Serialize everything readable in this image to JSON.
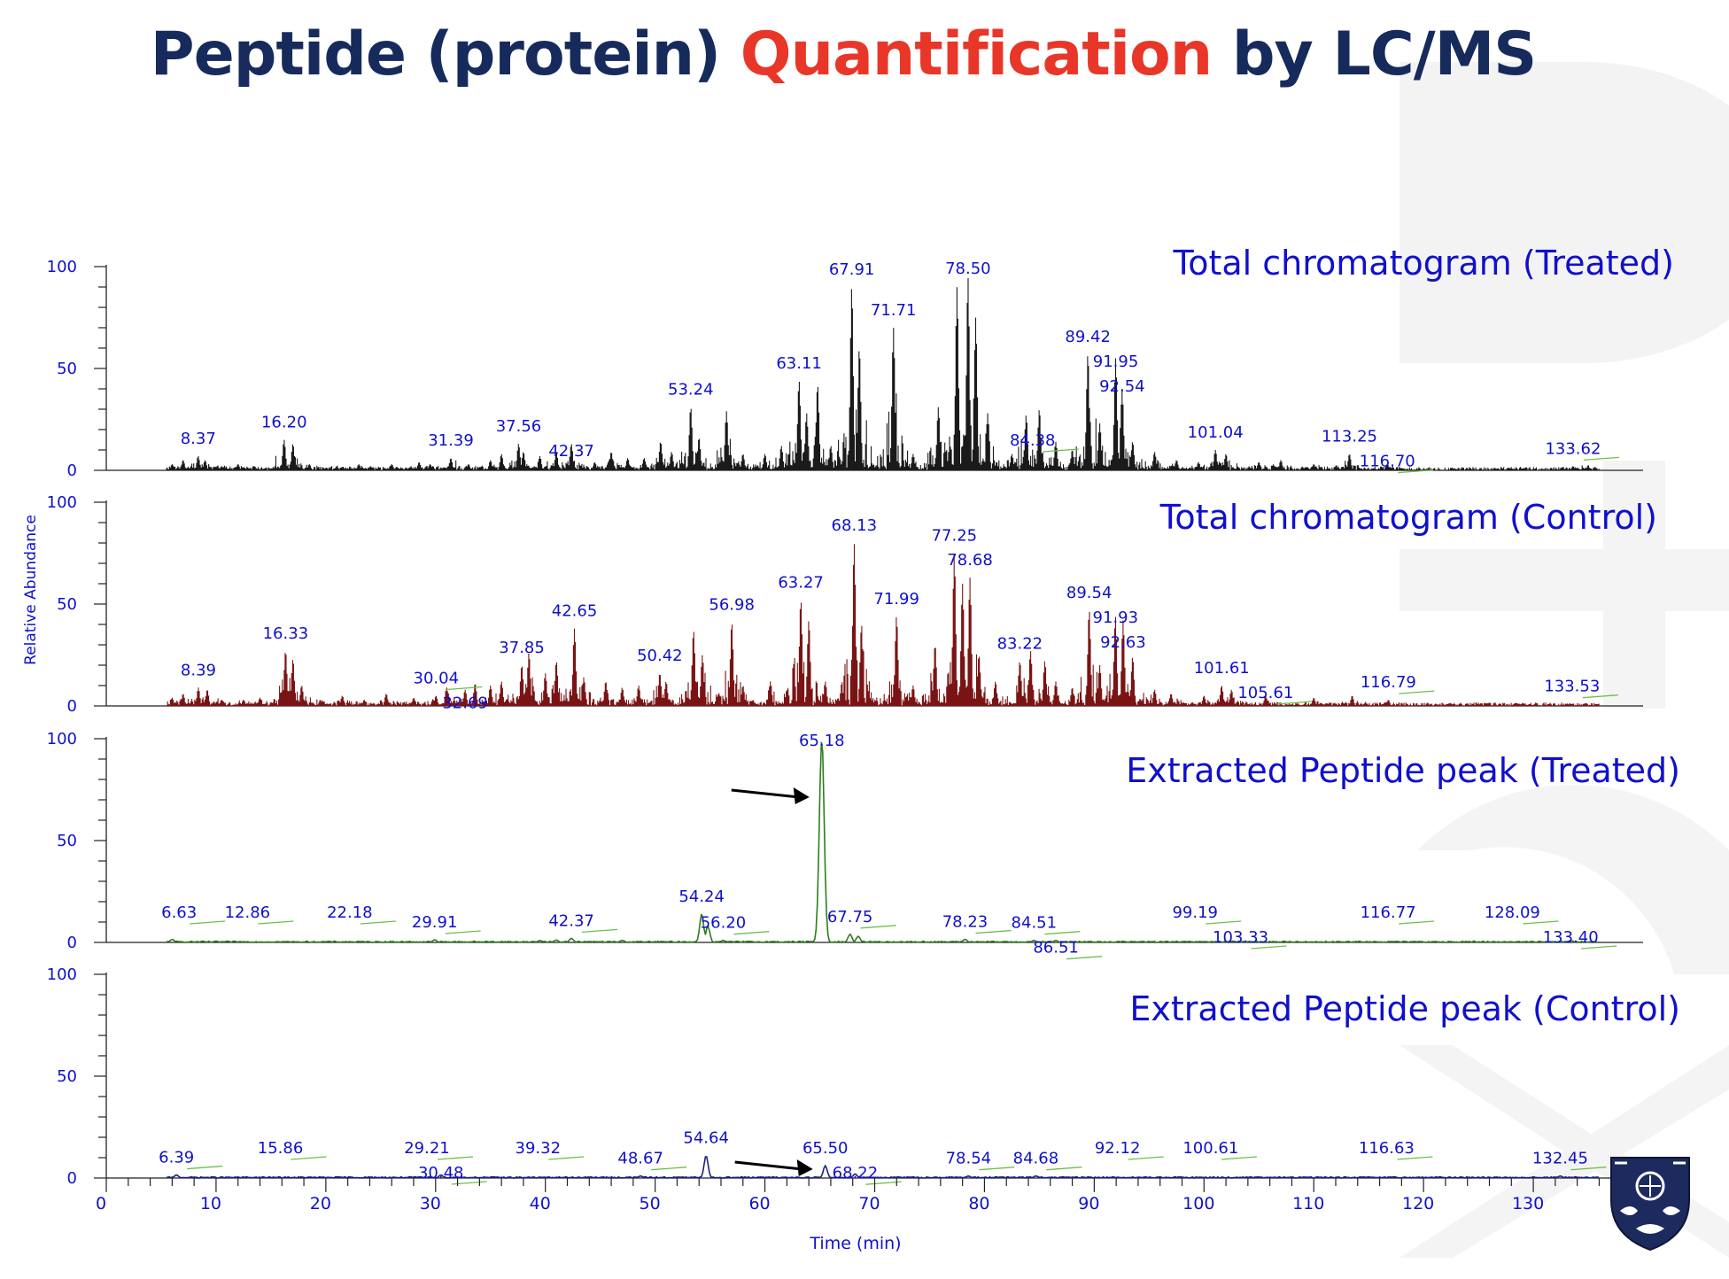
{
  "slide": {
    "title_part1": "Peptide (protein) ",
    "title_highlight": "Quantification",
    "title_part3": " by LC/MS",
    "title_color": "#172a5c",
    "highlight_color": "#e83628",
    "logo_icon": "university-crest-icon"
  },
  "chart_data": {
    "type": "line",
    "x_axis": {
      "label": "Time (min)",
      "range": [
        0,
        140
      ],
      "ticks": [
        0,
        10,
        20,
        30,
        40,
        50,
        60,
        70,
        80,
        90,
        100,
        110,
        120,
        130,
        140
      ]
    },
    "y_axis": {
      "label": "Relative Abundance",
      "range": [
        0,
        100
      ],
      "ticks": [
        0,
        50,
        100
      ]
    },
    "label_color": "#1010cc",
    "panels": [
      {
        "id": "treated-total",
        "title": "Total chromatogram (Treated)",
        "color": "#1a1a1a",
        "peaks": [
          [
            6,
            3
          ],
          [
            7,
            5
          ],
          [
            8.37,
            7
          ],
          [
            9,
            5
          ],
          [
            10.5,
            2
          ],
          [
            12,
            3
          ],
          [
            13.5,
            2
          ],
          [
            16.2,
            15
          ],
          [
            17,
            13
          ],
          [
            18.5,
            3
          ],
          [
            21,
            2
          ],
          [
            23,
            3
          ],
          [
            26,
            3
          ],
          [
            28.5,
            4
          ],
          [
            29.5,
            3
          ],
          [
            31.39,
            6
          ],
          [
            33,
            3
          ],
          [
            35,
            5
          ],
          [
            36,
            8
          ],
          [
            37.56,
            13
          ],
          [
            38,
            9
          ],
          [
            39.5,
            7
          ],
          [
            41,
            9
          ],
          [
            42.37,
            13
          ],
          [
            44.5,
            4
          ],
          [
            46,
            9
          ],
          [
            47.5,
            6
          ],
          [
            49,
            6
          ],
          [
            50.5,
            14
          ],
          [
            51.5,
            9
          ],
          [
            53.24,
            31
          ],
          [
            54,
            16
          ],
          [
            56.5,
            29
          ],
          [
            58,
            8
          ],
          [
            60,
            8
          ],
          [
            61.5,
            12
          ],
          [
            63.11,
            44
          ],
          [
            63.8,
            28
          ],
          [
            64.8,
            42
          ],
          [
            66,
            12
          ],
          [
            67.91,
            90
          ],
          [
            68.6,
            60
          ],
          [
            71.71,
            70
          ],
          [
            73.5,
            8
          ],
          [
            75.8,
            31
          ],
          [
            77.5,
            90
          ],
          [
            78.5,
            95
          ],
          [
            79.2,
            75
          ],
          [
            80.3,
            28
          ],
          [
            82.5,
            8
          ],
          [
            83.8,
            27
          ],
          [
            85,
            30
          ],
          [
            86.5,
            14
          ],
          [
            88,
            10
          ],
          [
            89.42,
            57
          ],
          [
            90.5,
            23
          ],
          [
            91.95,
            55
          ],
          [
            92.54,
            40
          ],
          [
            93.5,
            14
          ],
          [
            95.5,
            9
          ],
          [
            97.5,
            5
          ],
          [
            99.5,
            4
          ],
          [
            101.04,
            10
          ],
          [
            102,
            8
          ],
          [
            105,
            4
          ],
          [
            107,
            5
          ],
          [
            110,
            3
          ],
          [
            113.25,
            8
          ],
          [
            116.7,
            3
          ],
          [
            128,
            1
          ],
          [
            133.62,
            2
          ],
          [
            135,
            2
          ]
        ],
        "peak_labels": [
          {
            "x": 8.37,
            "text": "8.37"
          },
          {
            "x": 16.2,
            "text": "16.20"
          },
          {
            "x": 31.39,
            "text": "31.39"
          },
          {
            "x": 37.56,
            "text": "37.56"
          },
          {
            "x": 42.37,
            "text": "42.37"
          },
          {
            "x": 53.24,
            "text": "53.24"
          },
          {
            "x": 63.11,
            "text": "63.11"
          },
          {
            "x": 67.91,
            "text": "67.91"
          },
          {
            "x": 71.71,
            "text": "71.71"
          },
          {
            "x": 78.5,
            "text": "78.50"
          },
          {
            "x": 84.38,
            "text": "84.38"
          },
          {
            "x": 89.42,
            "text": "89.42"
          },
          {
            "x": 91.95,
            "text": "91.95"
          },
          {
            "x": 92.54,
            "text": "92.54"
          },
          {
            "x": 101.04,
            "text": "101.04"
          },
          {
            "x": 113.25,
            "text": "113.25"
          },
          {
            "x": 116.7,
            "text": "116.70"
          },
          {
            "x": 133.62,
            "text": "133.62"
          }
        ]
      },
      {
        "id": "control-total",
        "title": "Total chromatogram (Control)",
        "color": "#7a1414",
        "peaks": [
          [
            6,
            4
          ],
          [
            7,
            6
          ],
          [
            8.39,
            9
          ],
          [
            9.2,
            8
          ],
          [
            10.5,
            3
          ],
          [
            12.5,
            3
          ],
          [
            14,
            4
          ],
          [
            16.33,
            27
          ],
          [
            17,
            23
          ],
          [
            17.8,
            10
          ],
          [
            19.5,
            3
          ],
          [
            21.5,
            5
          ],
          [
            23.5,
            3
          ],
          [
            25.5,
            6
          ],
          [
            28,
            4
          ],
          [
            30.04,
            5
          ],
          [
            31,
            9
          ],
          [
            32.69,
            8
          ],
          [
            33.6,
            11
          ],
          [
            35,
            10
          ],
          [
            36,
            12
          ],
          [
            37.85,
            20
          ],
          [
            38.5,
            26
          ],
          [
            40,
            16
          ],
          [
            41,
            22
          ],
          [
            42.65,
            38
          ],
          [
            43.5,
            14
          ],
          [
            45.5,
            12
          ],
          [
            47,
            9
          ],
          [
            48.5,
            10
          ],
          [
            50.42,
            16
          ],
          [
            51,
            12
          ],
          [
            53.5,
            37
          ],
          [
            54.3,
            25
          ],
          [
            56.98,
            41
          ],
          [
            58,
            10
          ],
          [
            60.5,
            12
          ],
          [
            62,
            8
          ],
          [
            63.27,
            52
          ],
          [
            64,
            42
          ],
          [
            65.5,
            12
          ],
          [
            67,
            10
          ],
          [
            68.13,
            80
          ],
          [
            68.8,
            40
          ],
          [
            71.99,
            44
          ],
          [
            73.5,
            10
          ],
          [
            75.5,
            30
          ],
          [
            77.25,
            75
          ],
          [
            78,
            60
          ],
          [
            78.68,
            63
          ],
          [
            79.5,
            25
          ],
          [
            81,
            12
          ],
          [
            83.22,
            22
          ],
          [
            84.2,
            27
          ],
          [
            85.5,
            22
          ],
          [
            86.5,
            12
          ],
          [
            88,
            9
          ],
          [
            89.54,
            47
          ],
          [
            90.5,
            20
          ],
          [
            91.93,
            44
          ],
          [
            92.63,
            42
          ],
          [
            93.5,
            24
          ],
          [
            95.5,
            8
          ],
          [
            97,
            6
          ],
          [
            100,
            5
          ],
          [
            101.61,
            10
          ],
          [
            102.5,
            8
          ],
          [
            105.61,
            5
          ],
          [
            110,
            4
          ],
          [
            113.5,
            5
          ],
          [
            116.79,
            3
          ],
          [
            125,
            1
          ],
          [
            133.53,
            1
          ]
        ],
        "peak_labels": [
          {
            "x": 8.39,
            "text": "8.39"
          },
          {
            "x": 16.33,
            "text": "16.33"
          },
          {
            "x": 30.04,
            "text": "30.04"
          },
          {
            "x": 32.69,
            "text": "32.69"
          },
          {
            "x": 37.85,
            "text": "37.85"
          },
          {
            "x": 42.65,
            "text": "42.65"
          },
          {
            "x": 50.42,
            "text": "50.42"
          },
          {
            "x": 56.98,
            "text": "56.98"
          },
          {
            "x": 63.27,
            "text": "63.27"
          },
          {
            "x": 68.13,
            "text": "68.13"
          },
          {
            "x": 71.99,
            "text": "71.99"
          },
          {
            "x": 77.25,
            "text": "77.25"
          },
          {
            "x": 78.68,
            "text": "78.68"
          },
          {
            "x": 83.22,
            "text": "83.22"
          },
          {
            "x": 89.54,
            "text": "89.54"
          },
          {
            "x": 91.93,
            "text": "91.93"
          },
          {
            "x": 92.63,
            "text": "92.63"
          },
          {
            "x": 101.61,
            "text": "101.61"
          },
          {
            "x": 105.61,
            "text": "105.61"
          },
          {
            "x": 116.79,
            "text": "116.79"
          },
          {
            "x": 133.53,
            "text": "133.53"
          }
        ]
      },
      {
        "id": "treated-extracted",
        "title": "Extracted Peptide peak (Treated)",
        "color": "#2e7d1e",
        "arrow_at": 65.18,
        "peaks": [
          [
            6,
            1.5
          ],
          [
            29.91,
            1.3
          ],
          [
            39.5,
            1
          ],
          [
            41,
            1.2
          ],
          [
            42.37,
            2
          ],
          [
            47,
            1
          ],
          [
            54.24,
            14
          ],
          [
            54.8,
            8
          ],
          [
            56.2,
            1
          ],
          [
            65.18,
            100
          ],
          [
            67.75,
            4
          ],
          [
            68.5,
            3
          ],
          [
            78.23,
            1.5
          ],
          [
            84.51,
            1
          ],
          [
            86.51,
            1
          ],
          [
            133.4,
            1
          ]
        ],
        "peak_labels": [
          {
            "x": 6.63,
            "text": "6.63"
          },
          {
            "x": 12.86,
            "text": "12.86"
          },
          {
            "x": 22.18,
            "text": "22.18"
          },
          {
            "x": 29.91,
            "text": "29.91"
          },
          {
            "x": 42.37,
            "text": "42.37"
          },
          {
            "x": 54.24,
            "text": "54.24"
          },
          {
            "x": 56.2,
            "text": "56.20"
          },
          {
            "x": 65.18,
            "text": "65.18"
          },
          {
            "x": 67.75,
            "text": "67.75"
          },
          {
            "x": 78.23,
            "text": "78.23"
          },
          {
            "x": 84.51,
            "text": "84.51"
          },
          {
            "x": 86.51,
            "text": "86.51"
          },
          {
            "x": 99.19,
            "text": "99.19"
          },
          {
            "x": 103.33,
            "text": "103.33"
          },
          {
            "x": 116.77,
            "text": "116.77"
          },
          {
            "x": 128.09,
            "text": "128.09"
          },
          {
            "x": 133.4,
            "text": "133.40"
          }
        ]
      },
      {
        "id": "control-extracted",
        "title": "Extracted Peptide peak (Control)",
        "color": "#1a237e",
        "arrow_at": 65.5,
        "peaks": [
          [
            6.39,
            1.5
          ],
          [
            30.48,
            1.5
          ],
          [
            48.67,
            1
          ],
          [
            54.64,
            11
          ],
          [
            65.5,
            6
          ],
          [
            68.22,
            2
          ],
          [
            78.54,
            1
          ],
          [
            84.68,
            1
          ],
          [
            132.45,
            1
          ]
        ],
        "peak_labels": [
          {
            "x": 6.39,
            "text": "6.39"
          },
          {
            "x": 15.86,
            "text": "15.86"
          },
          {
            "x": 29.21,
            "text": "29.21"
          },
          {
            "x": 30.48,
            "text": "30.48"
          },
          {
            "x": 39.32,
            "text": "39.32"
          },
          {
            "x": 48.67,
            "text": "48.67"
          },
          {
            "x": 54.64,
            "text": "54.64"
          },
          {
            "x": 65.5,
            "text": "65.50"
          },
          {
            "x": 68.22,
            "text": "68.22"
          },
          {
            "x": 78.54,
            "text": "78.54"
          },
          {
            "x": 84.68,
            "text": "84.68"
          },
          {
            "x": 92.12,
            "text": "92.12"
          },
          {
            "x": 100.61,
            "text": "100.61"
          },
          {
            "x": 116.63,
            "text": "116.63"
          },
          {
            "x": 132.45,
            "text": "132.45"
          }
        ]
      }
    ]
  }
}
